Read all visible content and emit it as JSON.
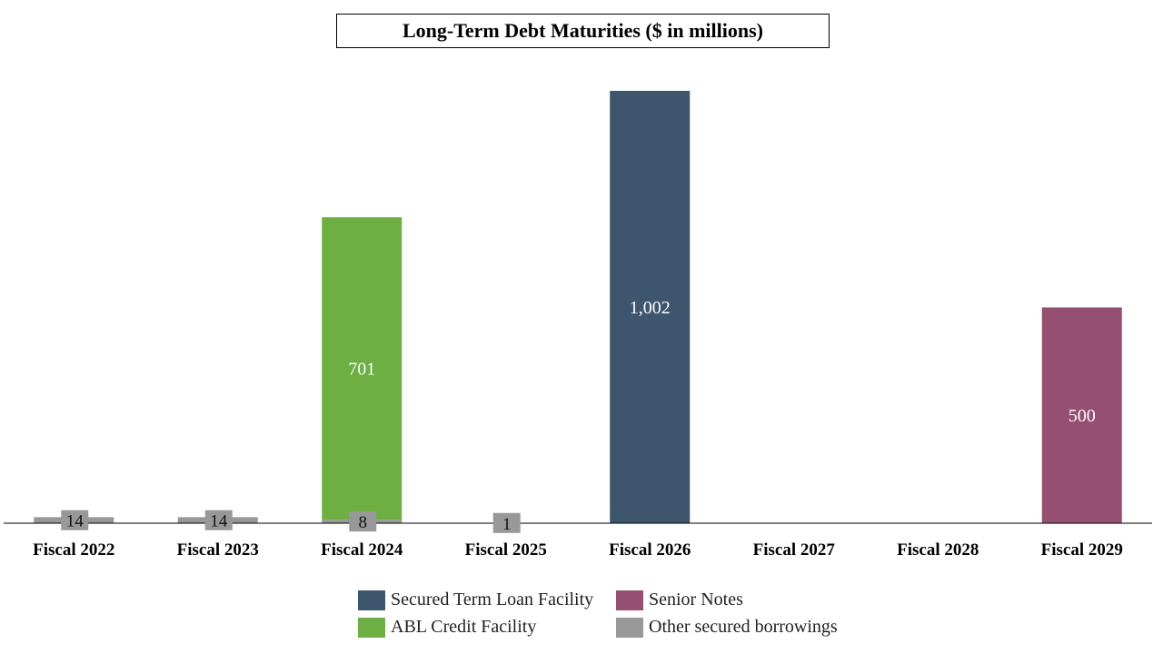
{
  "chart_data": {
    "type": "bar",
    "stacked": true,
    "title": "Long-Term Debt Maturities ($ in millions)",
    "categories": [
      "Fiscal 2022",
      "Fiscal 2023",
      "Fiscal 2024",
      "Fiscal 2025",
      "Fiscal 2026",
      "Fiscal 2027",
      "Fiscal 2028",
      "Fiscal 2029"
    ],
    "series": [
      {
        "name": "Other secured borrowings",
        "color": "#989898",
        "values": [
          14,
          14,
          8,
          1,
          0,
          0,
          0,
          0
        ],
        "label_style": "box"
      },
      {
        "name": "ABL Credit Facility",
        "color": "#6DAF43",
        "values": [
          0,
          0,
          701,
          0,
          0,
          0,
          0,
          0
        ],
        "label_style": "inside"
      },
      {
        "name": "Secured Term Loan Facility",
        "color": "#3D566E",
        "values": [
          0,
          0,
          0,
          0,
          1002,
          0,
          0,
          0
        ],
        "label_style": "inside"
      },
      {
        "name": "Senior Notes",
        "color": "#944F71",
        "values": [
          0,
          0,
          0,
          0,
          0,
          0,
          0,
          500
        ],
        "label_style": "inside"
      }
    ],
    "data_labels": {
      "Other secured borrowings": [
        "14",
        "14",
        "8",
        "1",
        "",
        "",
        "",
        ""
      ],
      "ABL Credit Facility": [
        "",
        "",
        "701",
        "",
        "",
        "",
        "",
        ""
      ],
      "Secured Term Loan Facility": [
        "",
        "",
        "",
        "",
        "1,002",
        "",
        "",
        ""
      ],
      "Senior Notes": [
        "",
        "",
        "",
        "",
        "",
        "",
        "",
        "500"
      ]
    },
    "legend": {
      "position": "bottom",
      "items": [
        {
          "label": "Secured Term Loan Facility",
          "color": "#3D566E"
        },
        {
          "label": "Senior Notes",
          "color": "#944F71"
        },
        {
          "label": "ABL Credit Facility",
          "color": "#6DAF43"
        },
        {
          "label": "Other secured borrowings",
          "color": "#989898"
        }
      ]
    },
    "ylim": [
      0,
      1002
    ],
    "grid": false,
    "xlabel": "",
    "ylabel": ""
  }
}
